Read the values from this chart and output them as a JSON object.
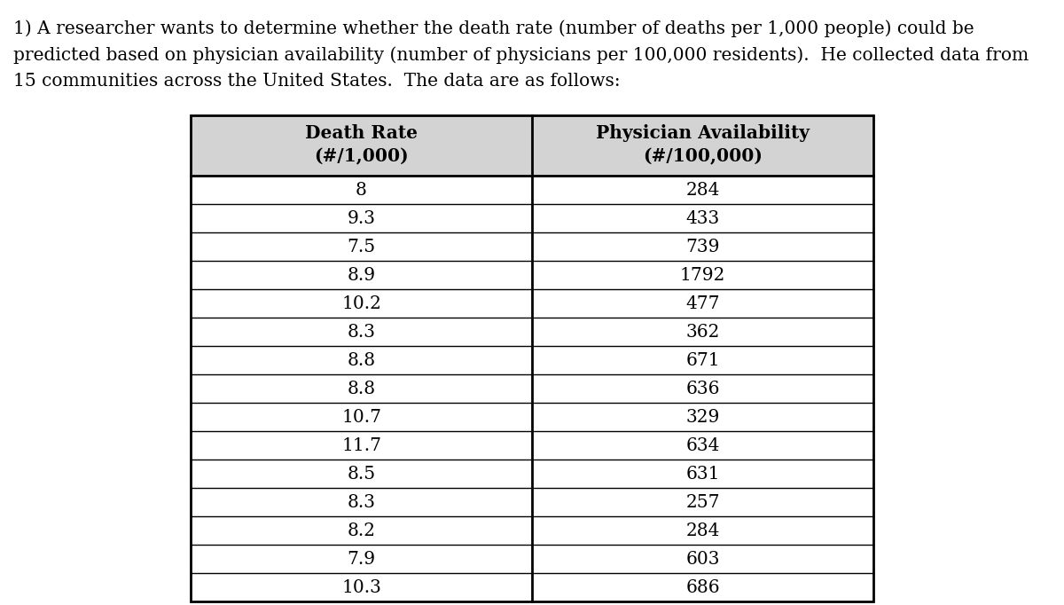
{
  "intro_lines": [
    "1) A researcher wants to determine whether the death rate (number of deaths per 1,000 people) could be",
    "predicted based on physician availability (number of physicians per 100,000 residents).  He collected data from",
    "15 communities across the United States.  The data are as follows:"
  ],
  "col1_header_line1": "Death Rate",
  "col1_header_line2": "(#/1,000)",
  "col2_header_line1": "Physician Availability",
  "col2_header_line2": "(#/100,000)",
  "death_rates": [
    8,
    9.3,
    7.5,
    8.9,
    10.2,
    8.3,
    8.8,
    8.8,
    10.7,
    11.7,
    8.5,
    8.3,
    8.2,
    7.9,
    10.3
  ],
  "physician_avail": [
    284,
    433,
    739,
    1792,
    477,
    362,
    671,
    636,
    329,
    634,
    631,
    257,
    284,
    603,
    686
  ],
  "header_bg": "#d3d3d3",
  "row_bg": "#ffffff",
  "border_color": "#000000",
  "text_color": "#000000",
  "font_family": "serif",
  "intro_fontsize": 14.5,
  "header_fontsize": 14.5,
  "data_fontsize": 14.5,
  "fig_width": 12.0,
  "fig_height": 6.82,
  "dpi": 100
}
